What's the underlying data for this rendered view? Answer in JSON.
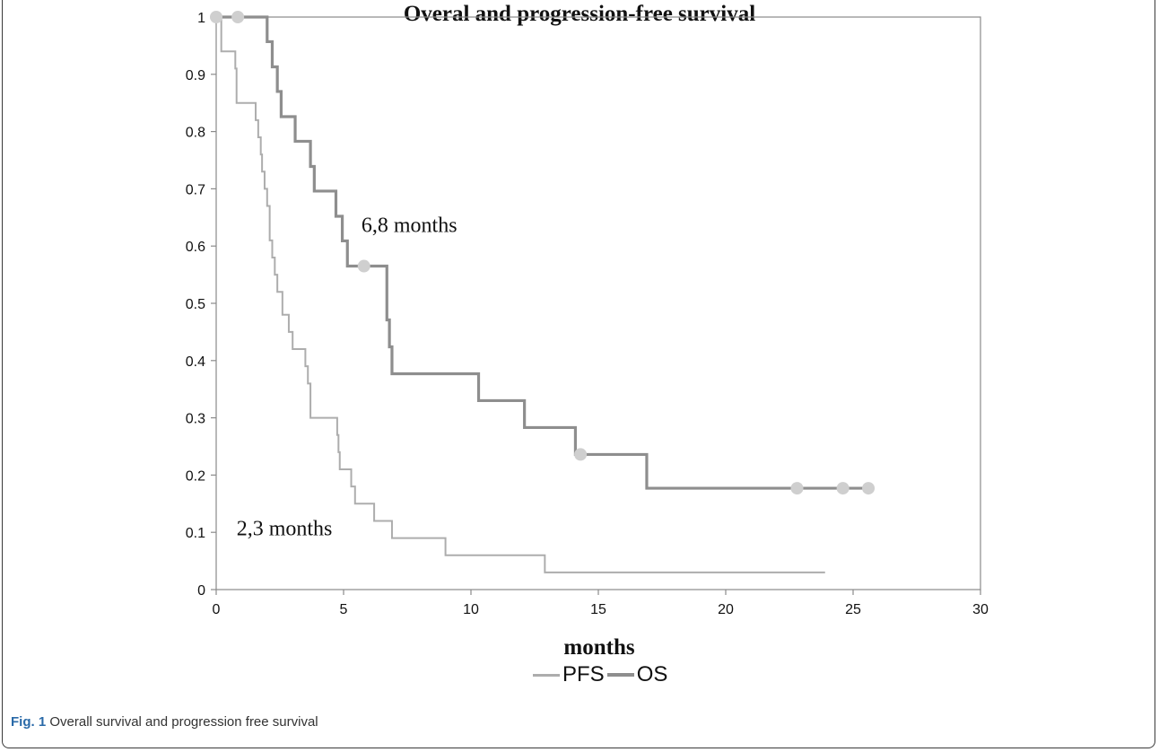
{
  "chart_data": {
    "type": "line",
    "title": "Overal and progression-free survival",
    "xlabel": "months",
    "ylabel": "",
    "xlim": [
      0,
      30
    ],
    "ylim": [
      0,
      1
    ],
    "xticks": [
      0,
      5,
      10,
      15,
      20,
      25,
      30
    ],
    "yticks": [
      0,
      0.1,
      0.2,
      0.3,
      0.4,
      0.5,
      0.6,
      0.7,
      0.8,
      0.9,
      1
    ],
    "grid": false,
    "legend_position": "bottom",
    "series": [
      {
        "name": "PFS",
        "color": "#adadad",
        "step": true,
        "x": [
          0,
          0.2,
          0.65,
          0.75,
          0.8,
          1.25,
          1.55,
          1.65,
          1.75,
          1.8,
          1.9,
          2.0,
          2.1,
          2.2,
          2.3,
          2.4,
          2.6,
          2.85,
          3.0,
          3.5,
          3.6,
          3.7,
          4.7,
          4.75,
          4.8,
          4.85,
          5.3,
          5.45,
          5.6,
          6.2,
          6.75,
          6.9,
          9.0,
          12.9,
          23.9
        ],
        "y": [
          1,
          0.94,
          0.94,
          0.91,
          0.85,
          0.85,
          0.82,
          0.79,
          0.76,
          0.73,
          0.7,
          0.67,
          0.61,
          0.58,
          0.55,
          0.52,
          0.48,
          0.45,
          0.42,
          0.39,
          0.36,
          0.3,
          0.3,
          0.27,
          0.24,
          0.21,
          0.18,
          0.15,
          0.15,
          0.12,
          0.12,
          0.09,
          0.06,
          0.03,
          0.03
        ]
      },
      {
        "name": "OS",
        "color": "#8e8e8e",
        "step": true,
        "x": [
          0,
          2.0,
          2.2,
          2.4,
          2.55,
          3.1,
          3.7,
          3.85,
          4.7,
          4.95,
          5.15,
          5.8,
          6.7,
          6.8,
          6.9,
          10.3,
          12.1,
          14.1,
          14.3,
          16.9,
          25.6
        ],
        "y": [
          1,
          0.957,
          0.913,
          0.87,
          0.826,
          0.783,
          0.739,
          0.696,
          0.652,
          0.609,
          0.565,
          0.565,
          0.471,
          0.424,
          0.377,
          0.33,
          0.283,
          0.236,
          0.236,
          0.177,
          0.177
        ],
        "censored": [
          [
            0,
            1
          ],
          [
            0.85,
            1
          ],
          [
            5.8,
            0.565
          ],
          [
            14.3,
            0.236
          ],
          [
            22.8,
            0.177
          ],
          [
            24.6,
            0.177
          ],
          [
            25.6,
            0.177
          ]
        ]
      }
    ],
    "annotations": [
      {
        "text": "6,8 months",
        "x": 5.7,
        "y": 0.625
      },
      {
        "text": "2,3 months",
        "x": 0.8,
        "y": 0.095
      }
    ]
  },
  "caption": {
    "label": "Fig. 1",
    "text": "Overall survival and progression free survival"
  }
}
